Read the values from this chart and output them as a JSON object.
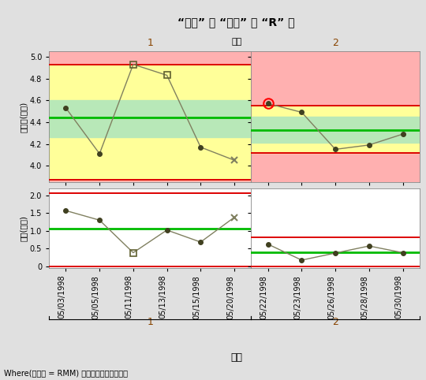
{
  "title": "“直径” 的 “均値” 和 “R” 图",
  "subtitle": "阶段",
  "xlabel": "日期",
  "ylabel_top": "平均値(直径)",
  "ylabel_bot": "极差(直径)",
  "footnote": "Where(操作员 = RMM) 排除的子组是隐藏的。",
  "dates_p1": [
    "05/03/1998",
    "05/05/1998",
    "05/11/1998",
    "05/13/1998",
    "05/15/1998",
    "05/20/1998"
  ],
  "dates_p2": [
    "05/22/1998",
    "05/23/1998",
    "05/26/1998",
    "05/28/1998",
    "05/30/1998"
  ],
  "xbar_p1": [
    4.53,
    4.11,
    4.93,
    4.83,
    4.17,
    4.05
  ],
  "xbar_p2": [
    4.57,
    4.49,
    4.15,
    4.19,
    4.29
  ],
  "r_p1": [
    1.57,
    1.3,
    0.38,
    1.02,
    0.68,
    1.38
  ],
  "r_p2": [
    0.62,
    0.17,
    0.37,
    0.57,
    0.38
  ],
  "xbar_cl_p1": 4.44,
  "xbar_ucl_p1": 4.93,
  "xbar_lcl_p1": 3.87,
  "xbar_uwl_p1": 4.6,
  "xbar_lwl_p1": 4.26,
  "xbar_cl_p2": 4.33,
  "xbar_ucl_p2": 4.55,
  "xbar_lcl_p2": 4.12,
  "xbar_uwl_p2": 4.45,
  "xbar_lwl_p2": 4.21,
  "r_cl_p1": 1.06,
  "r_ucl_p1": 2.07,
  "r_lcl_p1": 0.0,
  "r_cl_p2": 0.4,
  "r_ucl_p2": 0.82,
  "r_lcl_p2": 0.0,
  "xbar_ylim": [
    3.85,
    5.05
  ],
  "r_ylim_p1": [
    -0.05,
    2.2
  ],
  "r_ylim_p2": [
    -0.05,
    2.2
  ],
  "color_bg_outer": "#ffb0b0",
  "color_bg_mid": "#ffff99",
  "color_bg_inner": "#b8e8b8",
  "color_cl": "#00bb00",
  "color_ucl": "#dd0000",
  "color_lcl": "#dd0000",
  "color_data_line": "#808060",
  "color_dot": "#404020",
  "color_sq_edge": "#606030",
  "bg_color": "#e0e0e0"
}
